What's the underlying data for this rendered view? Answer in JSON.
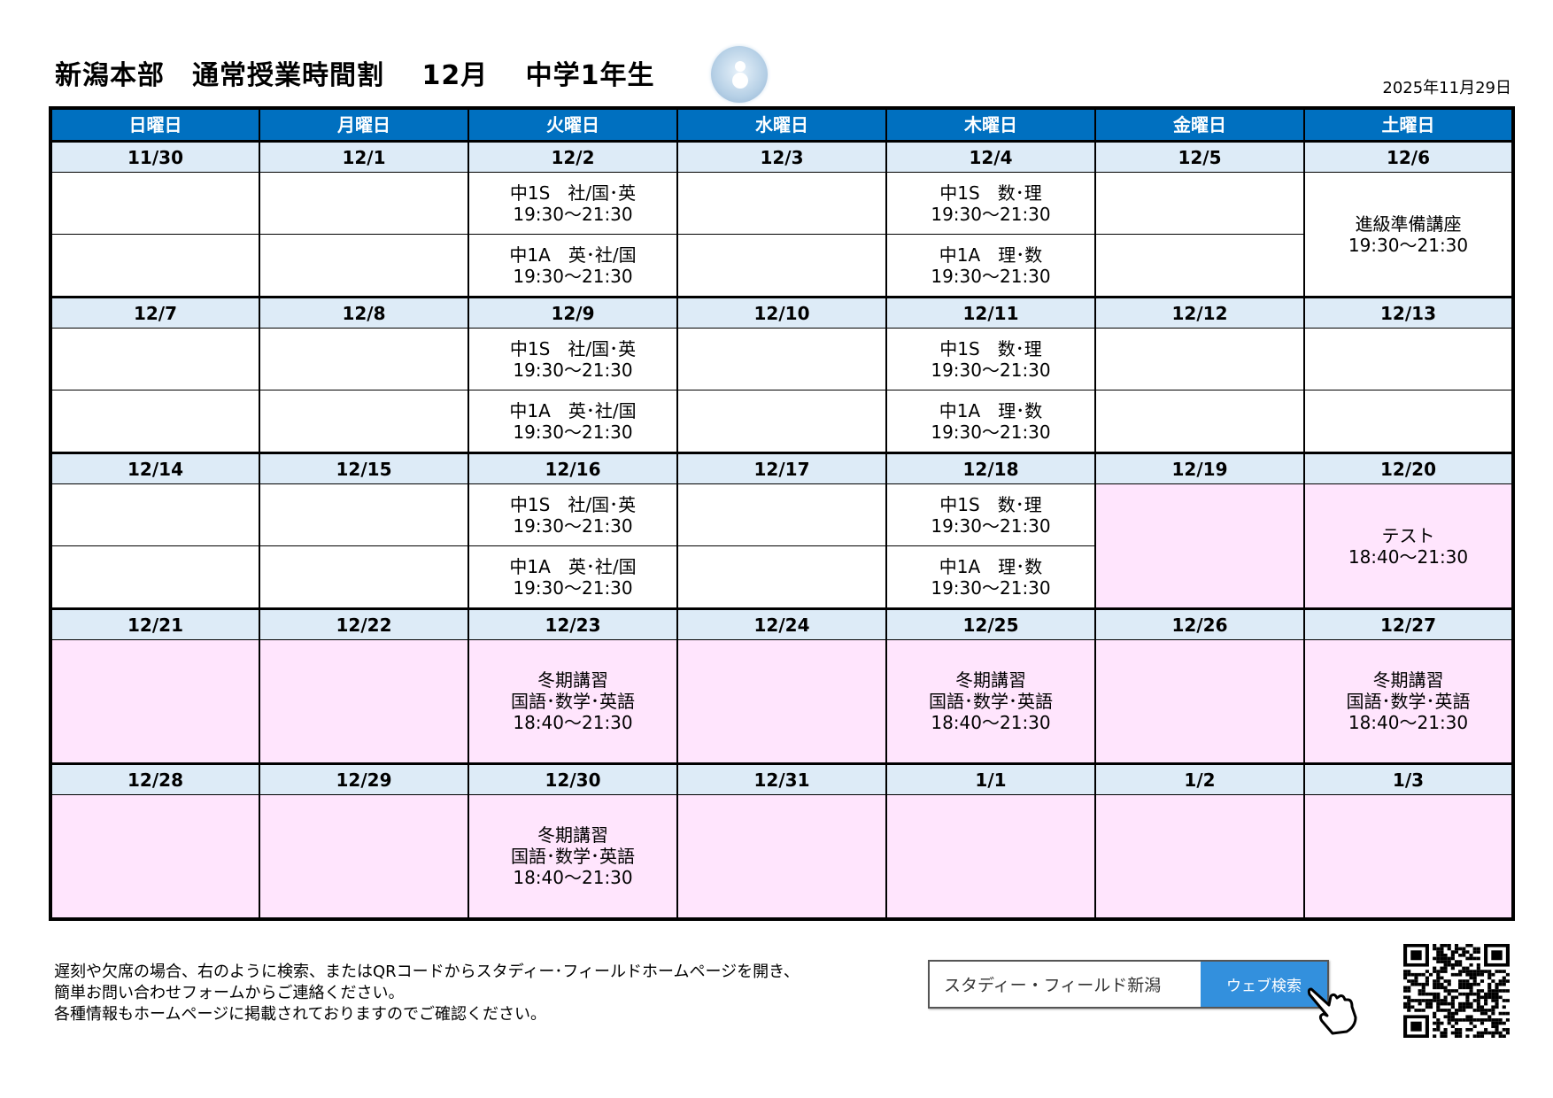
{
  "header": {
    "title": "新潟本部　通常授業時間割　 12月　 中学1年生",
    "issued_date": "2025年11月29日",
    "snowman_icon": "snowman-icon"
  },
  "colors": {
    "header_blue": "#0070c0",
    "date_row": "#ddebf7",
    "holiday_pink": "#ffe5fd"
  },
  "weekdays": [
    "日曜日",
    "月曜日",
    "火曜日",
    "水曜日",
    "木曜日",
    "金曜日",
    "土曜日"
  ],
  "weeks": [
    {
      "layout": "split",
      "days": [
        {
          "date": "11/30",
          "pink": false,
          "slots": [
            [],
            []
          ]
        },
        {
          "date": "12/1",
          "pink": false,
          "slots": [
            [],
            []
          ]
        },
        {
          "date": "12/2",
          "pink": false,
          "slots": [
            [
              "中1S　社/国･英",
              "19:30～21:30"
            ],
            [
              "中1A　英･社/国",
              "19:30～21:30"
            ]
          ]
        },
        {
          "date": "12/3",
          "pink": false,
          "slots": [
            [],
            []
          ]
        },
        {
          "date": "12/4",
          "pink": false,
          "slots": [
            [
              "中1S　数･理",
              "19:30～21:30"
            ],
            [
              "中1A　理･数",
              "19:30～21:30"
            ]
          ]
        },
        {
          "date": "12/5",
          "pink": false,
          "slots": [
            [],
            []
          ]
        },
        {
          "date": "12/6",
          "pink": false,
          "merged": [
            "進級準備講座",
            "19:30～21:30"
          ]
        }
      ]
    },
    {
      "layout": "split",
      "days": [
        {
          "date": "12/7",
          "pink": false,
          "slots": [
            [],
            []
          ]
        },
        {
          "date": "12/8",
          "pink": false,
          "slots": [
            [],
            []
          ]
        },
        {
          "date": "12/9",
          "pink": false,
          "slots": [
            [
              "中1S　社/国･英",
              "19:30～21:30"
            ],
            [
              "中1A　英･社/国",
              "19:30～21:30"
            ]
          ]
        },
        {
          "date": "12/10",
          "pink": false,
          "slots": [
            [],
            []
          ]
        },
        {
          "date": "12/11",
          "pink": false,
          "slots": [
            [
              "中1S　数･理",
              "19:30～21:30"
            ],
            [
              "中1A　理･数",
              "19:30～21:30"
            ]
          ]
        },
        {
          "date": "12/12",
          "pink": false,
          "slots": [
            [],
            []
          ]
        },
        {
          "date": "12/13",
          "pink": false,
          "slots": [
            [],
            []
          ]
        }
      ]
    },
    {
      "layout": "split",
      "days": [
        {
          "date": "12/14",
          "pink": false,
          "slots": [
            [],
            []
          ]
        },
        {
          "date": "12/15",
          "pink": false,
          "slots": [
            [],
            []
          ]
        },
        {
          "date": "12/16",
          "pink": false,
          "slots": [
            [
              "中1S　社/国･英",
              "19:30～21:30"
            ],
            [
              "中1A　英･社/国",
              "19:30～21:30"
            ]
          ]
        },
        {
          "date": "12/17",
          "pink": false,
          "slots": [
            [],
            []
          ]
        },
        {
          "date": "12/18",
          "pink": false,
          "slots": [
            [
              "中1S　数･理",
              "19:30～21:30"
            ],
            [
              "中1A　理･数",
              "19:30～21:30"
            ]
          ]
        },
        {
          "date": "12/19",
          "pink": true,
          "merged": []
        },
        {
          "date": "12/20",
          "pink": true,
          "merged": [
            "テスト",
            "18:40～21:30"
          ]
        }
      ]
    },
    {
      "layout": "full",
      "days": [
        {
          "date": "12/21",
          "pink": true,
          "merged": []
        },
        {
          "date": "12/22",
          "pink": true,
          "merged": []
        },
        {
          "date": "12/23",
          "pink": true,
          "merged": [
            "冬期講習",
            "国語･数学･英語",
            "18:40～21:30"
          ]
        },
        {
          "date": "12/24",
          "pink": true,
          "merged": []
        },
        {
          "date": "12/25",
          "pink": true,
          "merged": [
            "冬期講習",
            "国語･数学･英語",
            "18:40～21:30"
          ]
        },
        {
          "date": "12/26",
          "pink": true,
          "merged": []
        },
        {
          "date": "12/27",
          "pink": true,
          "merged": [
            "冬期講習",
            "国語･数学･英語",
            "18:40～21:30"
          ]
        }
      ]
    },
    {
      "layout": "full",
      "days": [
        {
          "date": "12/28",
          "pink": true,
          "merged": []
        },
        {
          "date": "12/29",
          "pink": true,
          "merged": []
        },
        {
          "date": "12/30",
          "pink": true,
          "merged": [
            "冬期講習",
            "国語･数学･英語",
            "18:40～21:30"
          ]
        },
        {
          "date": "12/31",
          "pink": true,
          "merged": []
        },
        {
          "date": "1/1",
          "pink": true,
          "merged": []
        },
        {
          "date": "1/2",
          "pink": true,
          "merged": []
        },
        {
          "date": "1/3",
          "pink": true,
          "merged": []
        }
      ]
    }
  ],
  "footer": {
    "lines": [
      "遅刻や欠席の場合、右のように検索、またはQRコードからスタディー･フィールドホームページを開き、",
      "簡単お問い合わせフォームからご連絡ください。",
      "各種情報もホームページに掲載されておりますのでご確認ください。"
    ]
  },
  "search": {
    "query": "スタディー・フィールド新潟",
    "button": "ウェブ検索",
    "pointer_icon": "hand-pointer-icon",
    "qr_icon": "qr-code-icon"
  }
}
